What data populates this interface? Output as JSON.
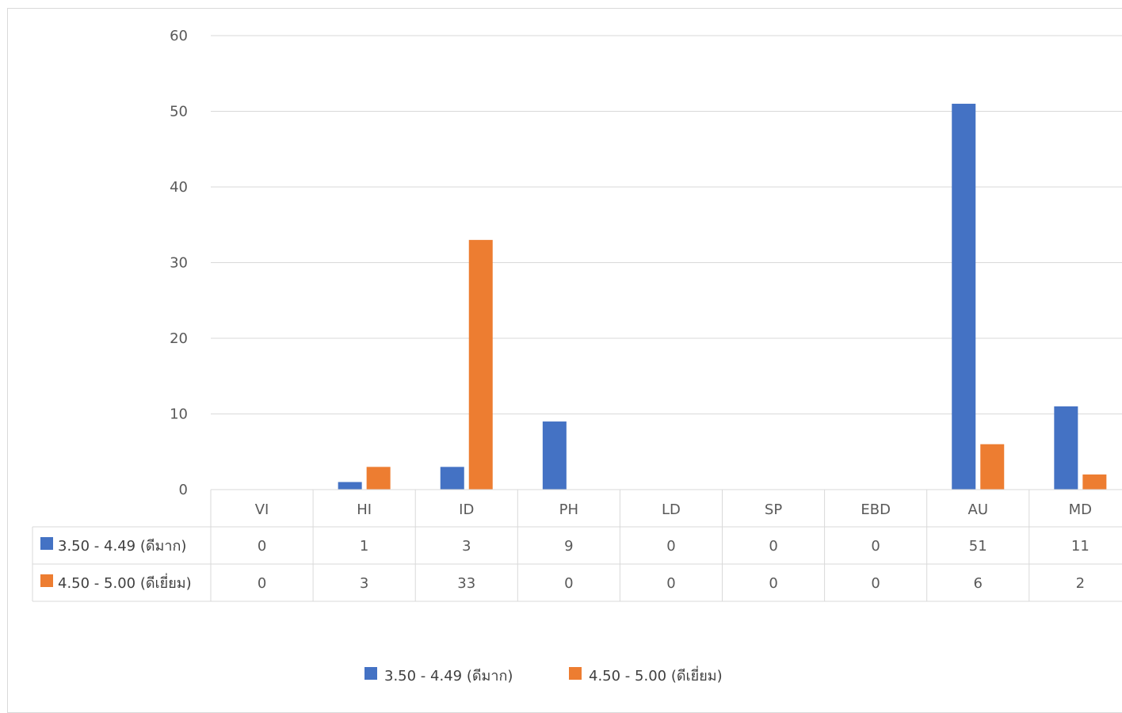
{
  "chart_data": {
    "type": "bar",
    "title": "",
    "xlabel": "",
    "ylabel": "",
    "ylim": [
      0,
      60
    ],
    "yticks": [
      0,
      10,
      20,
      30,
      40,
      50,
      60
    ],
    "grid": true,
    "legend_position": "bottom",
    "data_table": true,
    "categories": [
      "VI",
      "HI",
      "ID",
      "PH",
      "LD",
      "SP",
      "EBD",
      "AU",
      "MD"
    ],
    "series": [
      {
        "name": "3.50 - 4.49 (ดีมาก)",
        "color": "#4472c4",
        "values": [
          0,
          1,
          3,
          9,
          0,
          0,
          0,
          51,
          11
        ]
      },
      {
        "name": "4.50 - 5.00 (ดีเยี่ยม)",
        "color": "#ed7d31",
        "values": [
          0,
          3,
          33,
          0,
          0,
          0,
          0,
          6,
          2
        ]
      }
    ]
  }
}
